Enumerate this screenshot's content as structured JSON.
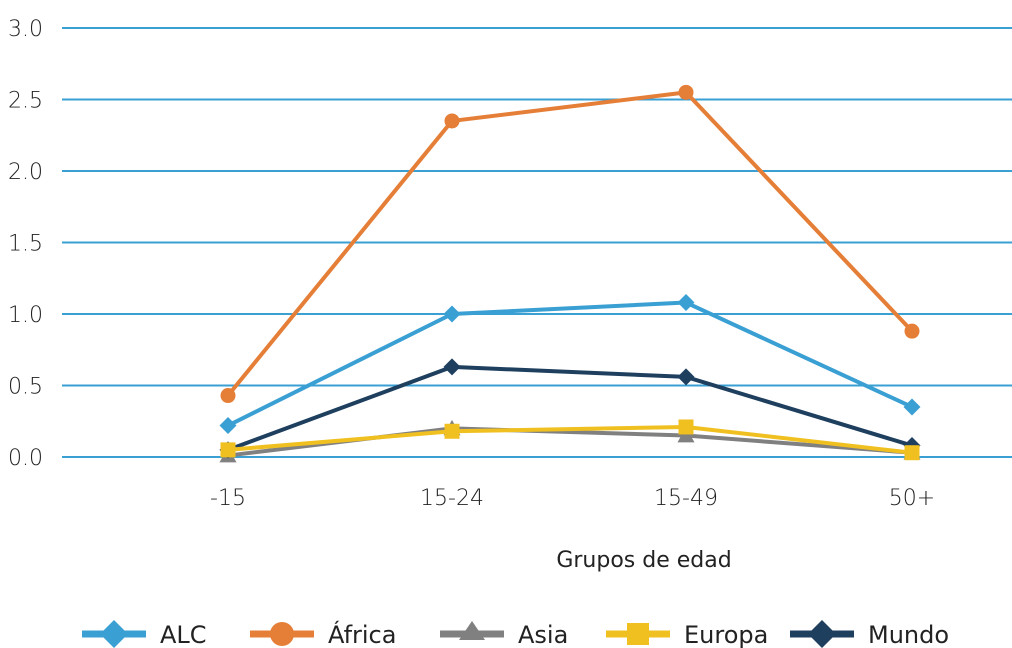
{
  "chart_data": {
    "type": "line",
    "categories": [
      "-15",
      "15-24",
      "15-49",
      "50+"
    ],
    "xlabel": "Grupos de edad",
    "ylabel": "",
    "ylim": [
      0,
      3.0
    ],
    "yticks": [
      "0.0",
      "0.5",
      "1.0",
      "1.5",
      "2.0",
      "2.5",
      "3.0"
    ],
    "grid": true,
    "legend_position": "bottom",
    "series": [
      {
        "name": "ALC",
        "values": [
          0.22,
          1.0,
          1.08,
          0.35
        ],
        "color": "#3a9fd3",
        "marker": "diamond"
      },
      {
        "name": "África",
        "values": [
          0.43,
          2.35,
          2.55,
          0.88
        ],
        "color": "#e57e37",
        "marker": "circle"
      },
      {
        "name": "Asia",
        "values": [
          0.01,
          0.2,
          0.15,
          0.03
        ],
        "color": "#808080",
        "marker": "triangle"
      },
      {
        "name": "Europa",
        "values": [
          0.05,
          0.18,
          0.21,
          0.03
        ],
        "color": "#f0c020",
        "marker": "square"
      },
      {
        "name": "Mundo",
        "values": [
          0.05,
          0.63,
          0.56,
          0.08
        ],
        "color": "#1f3f5f",
        "marker": "diamond"
      }
    ]
  }
}
